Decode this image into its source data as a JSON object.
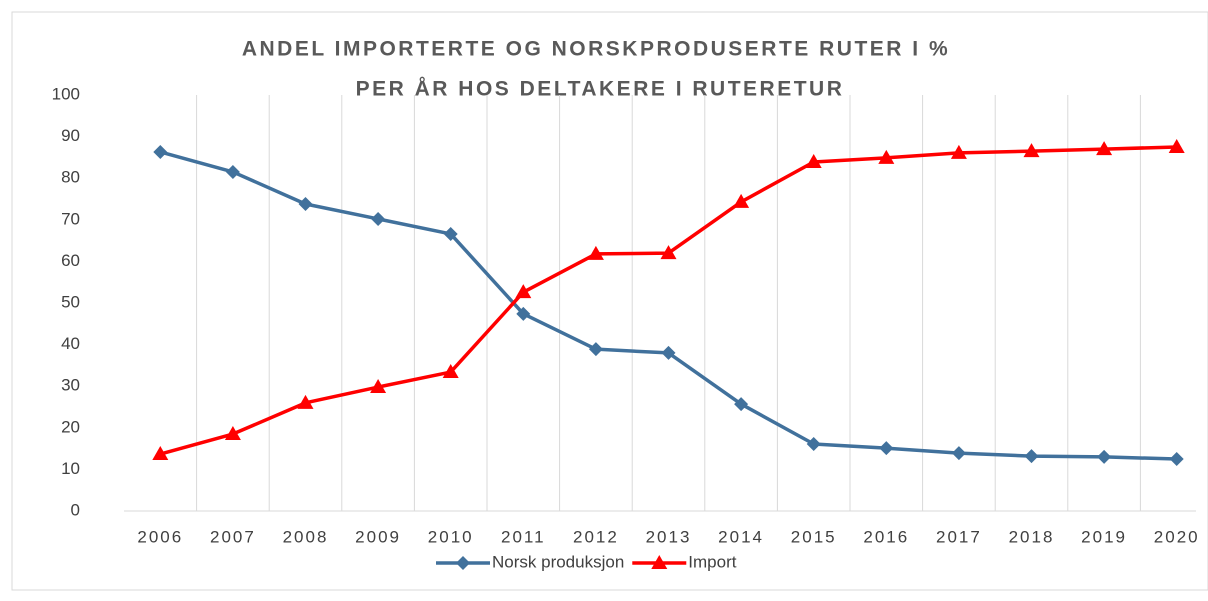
{
  "chart_data": {
    "type": "line",
    "title": [
      "ANDEL IMPORTERTE OG NORSKPRODUSERTE RUTER I %",
      "PER ÅR HOS DELTAKERE I RUTERETUR"
    ],
    "categories": [
      "2006",
      "2007",
      "2008",
      "2009",
      "2010",
      "2011",
      "2012",
      "2013",
      "2014",
      "2015",
      "2016",
      "2017",
      "2018",
      "2019",
      "2020"
    ],
    "series": [
      {
        "name": "Norsk produksjon",
        "color": "#41719c",
        "marker": "diamond",
        "values": [
          86.3,
          81.5,
          73.8,
          70.2,
          66.6,
          47.4,
          38.9,
          38,
          25.7,
          16.1,
          15.1,
          13.9,
          13.2,
          13,
          12.5
        ]
      },
      {
        "name": "Import",
        "color": "#ff0000",
        "marker": "triangle",
        "values": [
          13.7,
          18.5,
          26,
          29.8,
          33.4,
          52.6,
          61.8,
          62,
          74.3,
          83.9,
          84.9,
          86.1,
          86.5,
          87,
          87.5
        ]
      }
    ],
    "ylim": [
      0,
      100
    ],
    "yticks": [
      0,
      10,
      20,
      30,
      40,
      50,
      60,
      70,
      80,
      90,
      100
    ],
    "grid": "x",
    "legend": "bottom"
  }
}
